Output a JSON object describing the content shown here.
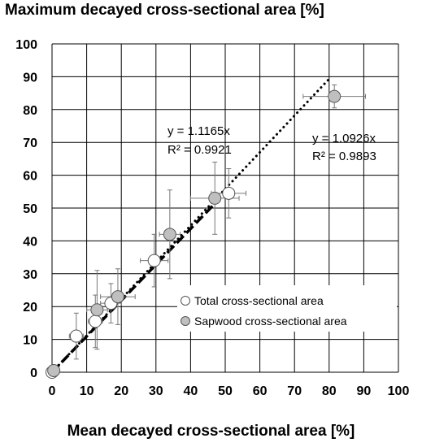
{
  "chart_data": {
    "type": "scatter",
    "ylabel": "Maximum decayed cross-sectional area [%]",
    "xlabel": "Mean decayed cross-sectional area [%]",
    "xlim": [
      0,
      100
    ],
    "ylim": [
      0,
      100
    ],
    "x_ticks": [
      "0",
      "10",
      "20",
      "30",
      "40",
      "50",
      "60",
      "70",
      "80",
      "90",
      "100"
    ],
    "y_ticks": [
      "0",
      "10",
      "20",
      "30",
      "40",
      "50",
      "60",
      "70",
      "80",
      "90",
      "100"
    ],
    "grid": true,
    "legend_position": "bottom-right",
    "series": [
      {
        "name": "Total cross-sectional area",
        "marker_fill": "#ffffff",
        "trendline": {
          "slope": 1.1165,
          "equation": "y = 1.1165x",
          "r2": "R² = 0.9921",
          "style": "dotted"
        },
        "points": [
          {
            "x": 0,
            "y": 0,
            "xerr": 0,
            "yerr": 0
          },
          {
            "x": 7,
            "y": 11,
            "xerr": 2,
            "yerr": 7
          },
          {
            "x": 12.5,
            "y": 15.5,
            "xerr": 2,
            "yerr": 8
          },
          {
            "x": 17,
            "y": 21,
            "xerr": 3,
            "yerr": 6
          },
          {
            "x": 29.5,
            "y": 34,
            "xerr": 4,
            "yerr": 8
          },
          {
            "x": 51,
            "y": 54.5,
            "xerr": 5,
            "yerr": 7.5
          }
        ]
      },
      {
        "name": "Sapwood cross-sectional area",
        "marker_fill": "#bfbfbf",
        "trendline": {
          "slope": 1.0926,
          "equation": "y = 1.0926x",
          "r2": "R² = 0.9893",
          "style": "dashed"
        },
        "points": [
          {
            "x": 0.5,
            "y": 0.5,
            "xerr": 0,
            "yerr": 0
          },
          {
            "x": 13,
            "y": 19,
            "xerr": 3,
            "yerr": 12
          },
          {
            "x": 19,
            "y": 23,
            "xerr": 5,
            "yerr": 8.5
          },
          {
            "x": 34,
            "y": 42,
            "xerr": 3,
            "yerr": 13.5
          },
          {
            "x": 47,
            "y": 53,
            "xerr": 7,
            "yerr": 11
          },
          {
            "x": 81.5,
            "y": 84,
            "xerr": 9,
            "yerr": 3.5
          }
        ]
      }
    ]
  }
}
